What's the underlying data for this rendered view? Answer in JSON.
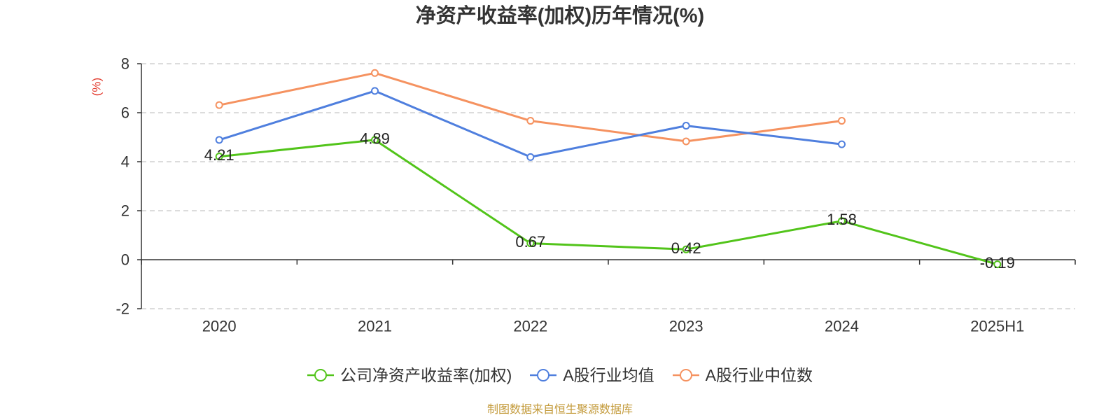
{
  "chart_data": {
    "type": "line",
    "title": "净资产收益率(加权)历年情况(%)",
    "categories": [
      "2020",
      "2021",
      "2022",
      "2023",
      "2024",
      "2025H1"
    ],
    "xlabel": "",
    "ylabel": "(%)",
    "ylabel_color": "#e23b2e",
    "ylim": [
      -2,
      8
    ],
    "yticks": [
      -2,
      0,
      2,
      4,
      6,
      8
    ],
    "grid": true,
    "legend": "bottom",
    "series": [
      {
        "name": "公司净资产收益率(加权)",
        "color": "#52c41a",
        "values": [
          4.21,
          4.89,
          0.67,
          0.42,
          1.58,
          -0.19
        ],
        "show_data_labels": true
      },
      {
        "name": "A股行业均值",
        "color": "#4f7fde",
        "values": [
          4.89,
          6.89,
          4.19,
          5.47,
          4.71,
          null
        ],
        "show_data_labels": false
      },
      {
        "name": "A股行业中位数",
        "color": "#f59260",
        "values": [
          6.31,
          7.62,
          5.67,
          4.83,
          5.67,
          null
        ],
        "show_data_labels": false
      }
    ]
  },
  "source_note": "制图数据来自恒生聚源数据库"
}
